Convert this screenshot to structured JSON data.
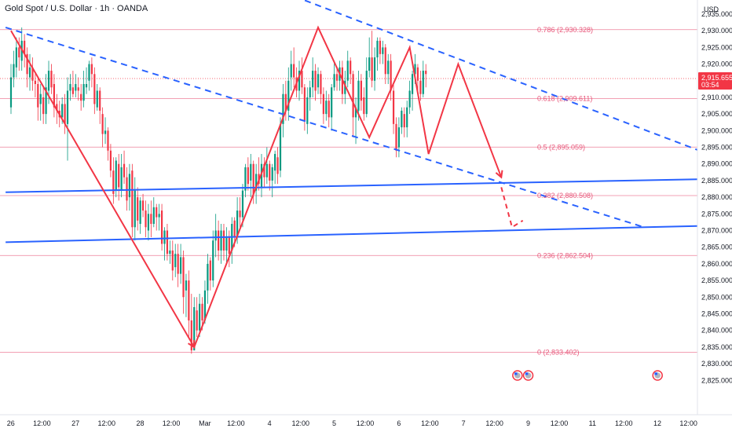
{
  "header": {
    "title": "Gold Spot / U.S. Dollar · 1h · OANDA"
  },
  "chart_data": {
    "type": "candlestick",
    "title": "Gold Spot / U.S. Dollar · 1h · OANDA",
    "currency": "USD",
    "ylim": [
      2822,
      2943
    ],
    "y_ticks": [
      2825,
      2830,
      2835,
      2840,
      2845,
      2850,
      2855,
      2860,
      2865,
      2870,
      2875,
      2880,
      2885,
      2890,
      2895,
      2900,
      2905,
      2910,
      2915,
      2920,
      2925,
      2930,
      2935
    ],
    "y_tick_labels": [
      "2,825.000",
      "2,830.000",
      "2,835.000",
      "2,840.000",
      "2,845.000",
      "2,850.000",
      "2,855.000",
      "2,860.000",
      "2,865.000",
      "2,870.000",
      "2,875.000",
      "2,880.000",
      "2,885.000",
      "2,890.000",
      "2,895.000",
      "2,900.000",
      "2,905.000",
      "2,910.000",
      "2,915.000",
      "2,920.000",
      "2,925.000",
      "2,930.000",
      "2,935.000"
    ],
    "x_range": [
      0,
      215
    ],
    "x_ticks": [
      {
        "label": "26",
        "t": 0
      },
      {
        "label": "12:00",
        "t": 12
      },
      {
        "label": "27",
        "t": 24
      },
      {
        "label": "12:00",
        "t": 36
      },
      {
        "label": "28",
        "t": 48
      },
      {
        "label": "12:00",
        "t": 60
      },
      {
        "label": "Mar",
        "t": 72
      },
      {
        "label": "12:00",
        "t": 84
      },
      {
        "label": "4",
        "t": 96
      },
      {
        "label": "12:00",
        "t": 108
      },
      {
        "label": "5",
        "t": 120
      },
      {
        "label": "12:00",
        "t": 132
      },
      {
        "label": "6",
        "t": 144
      },
      {
        "label": "12:00",
        "t": 156
      },
      {
        "label": "7",
        "t": 168
      },
      {
        "label": "12:00",
        "t": 180
      },
      {
        "label": "9",
        "t": 192
      },
      {
        "label": "12:00",
        "t": 204
      },
      {
        "label": "11",
        "t": 216
      },
      {
        "label": "12:00",
        "t": 228
      },
      {
        "label": "12",
        "t": 240
      },
      {
        "label": "12:00",
        "t": 252
      }
    ],
    "last_price": {
      "value": 2915.655,
      "label": "2,915.655",
      "countdown": "03:54"
    },
    "fib_levels": [
      {
        "ratio": "0.786",
        "price": 2930.328,
        "label": "0.786 (2,930.328)"
      },
      {
        "ratio": "0.618",
        "price": 2909.611,
        "label": "0.618 (2,909.611)"
      },
      {
        "ratio": "0.5",
        "price": 2895.059,
        "label": "0.5 (2,895.059)"
      },
      {
        "ratio": "0.382",
        "price": 2880.508,
        "label": "0.382 (2,880.508)"
      },
      {
        "ratio": "0.236",
        "price": 2862.504,
        "label": "0.236 (2,862.504)"
      },
      {
        "ratio": "0",
        "price": 2833.402,
        "label": "0 (2,833.402)"
      }
    ],
    "trend_lines_solid": [
      [
        [
          -2,
          2881.5
        ],
        [
          262,
          2885.5
        ]
      ],
      [
        [
          -2,
          2866.5
        ],
        [
          262,
          2871.5
        ]
      ]
    ],
    "trend_lines_dashed": [
      [
        [
          90,
          2945
        ],
        [
          262,
          2892
        ]
      ],
      [
        [
          -2,
          2931
        ],
        [
          235,
          2871
        ]
      ]
    ],
    "zigzag_path": [
      [
        0,
        2930
      ],
      [
        68,
        2835
      ],
      [
        114,
        2931
      ],
      [
        133,
        2898
      ],
      [
        148,
        2925
      ],
      [
        155,
        2893
      ],
      [
        166,
        2920
      ],
      [
        182,
        2886
      ]
    ],
    "projection_path": [
      [
        182,
        2883
      ],
      [
        186,
        2871
      ],
      [
        190,
        2873
      ]
    ],
    "event_markers": [
      188,
      192,
      240,
      264
    ],
    "candles": [
      [
        0,
        2907,
        2916,
        2920,
        2905
      ],
      [
        1,
        2916,
        2920,
        2924,
        2913
      ],
      [
        2,
        2919,
        2925,
        2928,
        2916
      ],
      [
        3,
        2925,
        2922,
        2928,
        2918
      ],
      [
        4,
        2921,
        2927,
        2931,
        2918
      ],
      [
        5,
        2927,
        2923,
        2929,
        2919
      ],
      [
        6,
        2923,
        2917,
        2925,
        2913
      ],
      [
        7,
        2916,
        2919,
        2923,
        2912
      ],
      [
        8,
        2919,
        2915,
        2922,
        2912
      ],
      [
        9,
        2915,
        2914,
        2917,
        2910
      ],
      [
        10,
        2914,
        2907,
        2916,
        2903
      ],
      [
        11,
        2908,
        2911,
        2914,
        2903
      ],
      [
        12,
        2910,
        2905,
        2913,
        2902
      ],
      [
        13,
        2905,
        2913,
        2917,
        2902
      ],
      [
        14,
        2912,
        2918,
        2921,
        2908
      ],
      [
        15,
        2918,
        2913,
        2920,
        2911
      ],
      [
        16,
        2914,
        2907,
        2917,
        2904
      ],
      [
        17,
        2908,
        2906,
        2911,
        2902
      ],
      [
        18,
        2906,
        2904,
        2909,
        2901
      ],
      [
        19,
        2904,
        2908,
        2910,
        2902
      ],
      [
        20,
        2908,
        2902,
        2911,
        2899
      ],
      [
        21,
        2902,
        2912,
        2916,
        2891
      ],
      [
        22,
        2912,
        2914,
        2917,
        2909
      ],
      [
        23,
        2913,
        2911,
        2918,
        2910
      ],
      [
        24,
        2912,
        2914,
        2917,
        2910
      ],
      [
        25,
        2913,
        2912,
        2916,
        2909
      ],
      [
        26,
        2911,
        2909,
        2914,
        2906
      ],
      [
        27,
        2909,
        2914,
        2918,
        2907
      ],
      [
        28,
        2913,
        2914,
        2919,
        2911
      ],
      [
        29,
        2915,
        2920,
        2921,
        2912
      ],
      [
        30,
        2920,
        2917,
        2922,
        2913
      ],
      [
        31,
        2917,
        2908,
        2919,
        2905
      ],
      [
        32,
        2907,
        2912,
        2914,
        2906
      ],
      [
        33,
        2912,
        2906,
        2913,
        2902
      ],
      [
        34,
        2905,
        2899,
        2907,
        2895
      ],
      [
        35,
        2899,
        2900,
        2904,
        2896
      ],
      [
        36,
        2900,
        2894,
        2901,
        2891
      ],
      [
        37,
        2894,
        2888,
        2896,
        2886
      ],
      [
        38,
        2888,
        2881,
        2892,
        2878
      ],
      [
        39,
        2882,
        2891,
        2892,
        2880
      ],
      [
        40,
        2890,
        2883,
        2893,
        2879
      ],
      [
        41,
        2882,
        2889,
        2893,
        2880
      ],
      [
        42,
        2890,
        2886,
        2894,
        2884
      ],
      [
        43,
        2886,
        2879,
        2889,
        2876
      ],
      [
        44,
        2880,
        2887,
        2890,
        2876
      ],
      [
        45,
        2888,
        2871,
        2890,
        2868
      ],
      [
        46,
        2871,
        2882,
        2886,
        2867
      ],
      [
        47,
        2880,
        2873,
        2883,
        2870
      ],
      [
        48,
        2872,
        2879,
        2880,
        2869
      ],
      [
        49,
        2879,
        2876,
        2881,
        2874
      ],
      [
        50,
        2876,
        2871,
        2879,
        2868
      ],
      [
        51,
        2870,
        2875,
        2878,
        2867
      ],
      [
        52,
        2875,
        2872,
        2879,
        2868
      ],
      [
        53,
        2872,
        2877,
        2880,
        2871
      ],
      [
        54,
        2877,
        2874,
        2878,
        2870
      ],
      [
        55,
        2874,
        2875,
        2878,
        2870
      ],
      [
        56,
        2876,
        2866,
        2878,
        2864
      ],
      [
        57,
        2866,
        2870,
        2871,
        2861
      ],
      [
        58,
        2870,
        2863,
        2872,
        2861
      ],
      [
        59,
        2863,
        2864,
        2867,
        2860
      ],
      [
        60,
        2864,
        2858,
        2867,
        2855
      ],
      [
        61,
        2859,
        2863,
        2866,
        2856
      ],
      [
        62,
        2863,
        2857,
        2866,
        2853
      ],
      [
        63,
        2857,
        2862,
        2866,
        2854
      ],
      [
        64,
        2862,
        2850,
        2864,
        2845
      ],
      [
        65,
        2852,
        2855,
        2857,
        2844
      ],
      [
        66,
        2855,
        2843,
        2858,
        2838
      ],
      [
        67,
        2843,
        2834,
        2851,
        2833
      ],
      [
        68,
        2834,
        2847,
        2850,
        2834
      ],
      [
        69,
        2846,
        2840,
        2850,
        2838
      ],
      [
        70,
        2840,
        2848,
        2851,
        2838
      ],
      [
        71,
        2848,
        2843,
        2850,
        2840
      ],
      [
        72,
        2843,
        2852,
        2855,
        2842
      ],
      [
        73,
        2852,
        2860,
        2863,
        2848
      ],
      [
        74,
        2861,
        2855,
        2862,
        2852
      ],
      [
        75,
        2855,
        2867,
        2870,
        2853
      ],
      [
        76,
        2867,
        2870,
        2875,
        2862
      ],
      [
        77,
        2870,
        2864,
        2873,
        2861
      ],
      [
        78,
        2864,
        2870,
        2872,
        2860
      ],
      [
        79,
        2870,
        2864,
        2872,
        2861
      ],
      [
        80,
        2864,
        2868,
        2871,
        2860
      ],
      [
        81,
        2868,
        2863,
        2870,
        2859
      ],
      [
        82,
        2864,
        2872,
        2874,
        2860
      ],
      [
        83,
        2873,
        2868,
        2874,
        2865
      ],
      [
        84,
        2868,
        2876,
        2880,
        2866
      ],
      [
        85,
        2876,
        2874,
        2880,
        2871
      ],
      [
        86,
        2874,
        2882,
        2884,
        2871
      ],
      [
        87,
        2882,
        2889,
        2890,
        2880
      ],
      [
        88,
        2889,
        2884,
        2892,
        2882
      ],
      [
        89,
        2885,
        2890,
        2893,
        2880
      ],
      [
        90,
        2890,
        2881,
        2891,
        2878
      ],
      [
        91,
        2882,
        2887,
        2890,
        2878
      ],
      [
        92,
        2887,
        2884,
        2892,
        2882
      ],
      [
        93,
        2883,
        2890,
        2893,
        2880
      ],
      [
        94,
        2890,
        2886,
        2892,
        2883
      ],
      [
        95,
        2886,
        2890,
        2895,
        2884
      ],
      [
        96,
        2890,
        2885,
        2891,
        2882
      ],
      [
        97,
        2885,
        2889,
        2890,
        2880
      ],
      [
        98,
        2888,
        2893,
        2894,
        2884
      ],
      [
        99,
        2892,
        2887,
        2895,
        2884
      ],
      [
        100,
        2888,
        2902,
        2904,
        2886
      ],
      [
        101,
        2902,
        2911,
        2914,
        2898
      ],
      [
        102,
        2911,
        2906,
        2915,
        2903
      ],
      [
        103,
        2906,
        2915,
        2919,
        2903
      ],
      [
        104,
        2916,
        2920,
        2924,
        2912
      ],
      [
        105,
        2920,
        2916,
        2925,
        2913
      ],
      [
        106,
        2916,
        2912,
        2919,
        2910
      ],
      [
        107,
        2912,
        2918,
        2921,
        2909
      ],
      [
        108,
        2918,
        2913,
        2922,
        2911
      ],
      [
        109,
        2913,
        2903,
        2914,
        2900
      ],
      [
        110,
        2902,
        2910,
        2913,
        2899
      ],
      [
        111,
        2910,
        2913,
        2915,
        2906
      ],
      [
        112,
        2913,
        2918,
        2922,
        2910
      ],
      [
        113,
        2918,
        2912,
        2920,
        2909
      ],
      [
        114,
        2913,
        2917,
        2919,
        2911
      ],
      [
        115,
        2917,
        2911,
        2918,
        2908
      ],
      [
        116,
        2911,
        2905,
        2913,
        2902
      ],
      [
        117,
        2905,
        2909,
        2912,
        2903
      ],
      [
        118,
        2909,
        2904,
        2911,
        2901
      ],
      [
        119,
        2904,
        2913,
        2914,
        2900
      ],
      [
        120,
        2913,
        2917,
        2921,
        2912
      ],
      [
        121,
        2917,
        2915,
        2919,
        2912
      ],
      [
        122,
        2915,
        2919,
        2921,
        2912
      ],
      [
        123,
        2919,
        2911,
        2921,
        2908
      ],
      [
        124,
        2911,
        2915,
        2918,
        2908
      ],
      [
        125,
        2915,
        2921,
        2924,
        2913
      ],
      [
        126,
        2921,
        2917,
        2922,
        2914
      ],
      [
        127,
        2917,
        2904,
        2918,
        2898
      ],
      [
        128,
        2904,
        2907,
        2910,
        2896
      ],
      [
        129,
        2906,
        2915,
        2918,
        2903
      ],
      [
        130,
        2915,
        2909,
        2917,
        2906
      ],
      [
        131,
        2910,
        2905,
        2913,
        2903
      ],
      [
        132,
        2905,
        2918,
        2922,
        2904
      ],
      [
        133,
        2918,
        2922,
        2928,
        2916
      ],
      [
        134,
        2922,
        2915,
        2930,
        2913
      ],
      [
        135,
        2915,
        2922,
        2925,
        2912
      ],
      [
        136,
        2922,
        2927,
        2928,
        2918
      ],
      [
        137,
        2927,
        2923,
        2928,
        2920
      ],
      [
        138,
        2923,
        2925,
        2927,
        2920
      ],
      [
        139,
        2925,
        2917,
        2926,
        2914
      ],
      [
        140,
        2917,
        2921,
        2923,
        2914
      ],
      [
        141,
        2921,
        2912,
        2923,
        2909
      ],
      [
        142,
        2912,
        2902,
        2914,
        2899
      ],
      [
        143,
        2902,
        2894,
        2904,
        2892
      ],
      [
        144,
        2895,
        2901,
        2904,
        2892
      ],
      [
        145,
        2901,
        2906,
        2907,
        2899
      ],
      [
        146,
        2905,
        2901,
        2907,
        2898
      ],
      [
        147,
        2901,
        2907,
        2909,
        2898
      ],
      [
        148,
        2907,
        2912,
        2915,
        2905
      ],
      [
        149,
        2911,
        2917,
        2918,
        2906
      ],
      [
        150,
        2917,
        2920,
        2923,
        2914
      ],
      [
        151,
        2919,
        2915,
        2920,
        2912
      ],
      [
        152,
        2915,
        2911,
        2918,
        2909
      ],
      [
        153,
        2911,
        2918,
        2921,
        2910
      ],
      [
        154,
        2918,
        2917,
        2920,
        2913
      ]
    ]
  }
}
